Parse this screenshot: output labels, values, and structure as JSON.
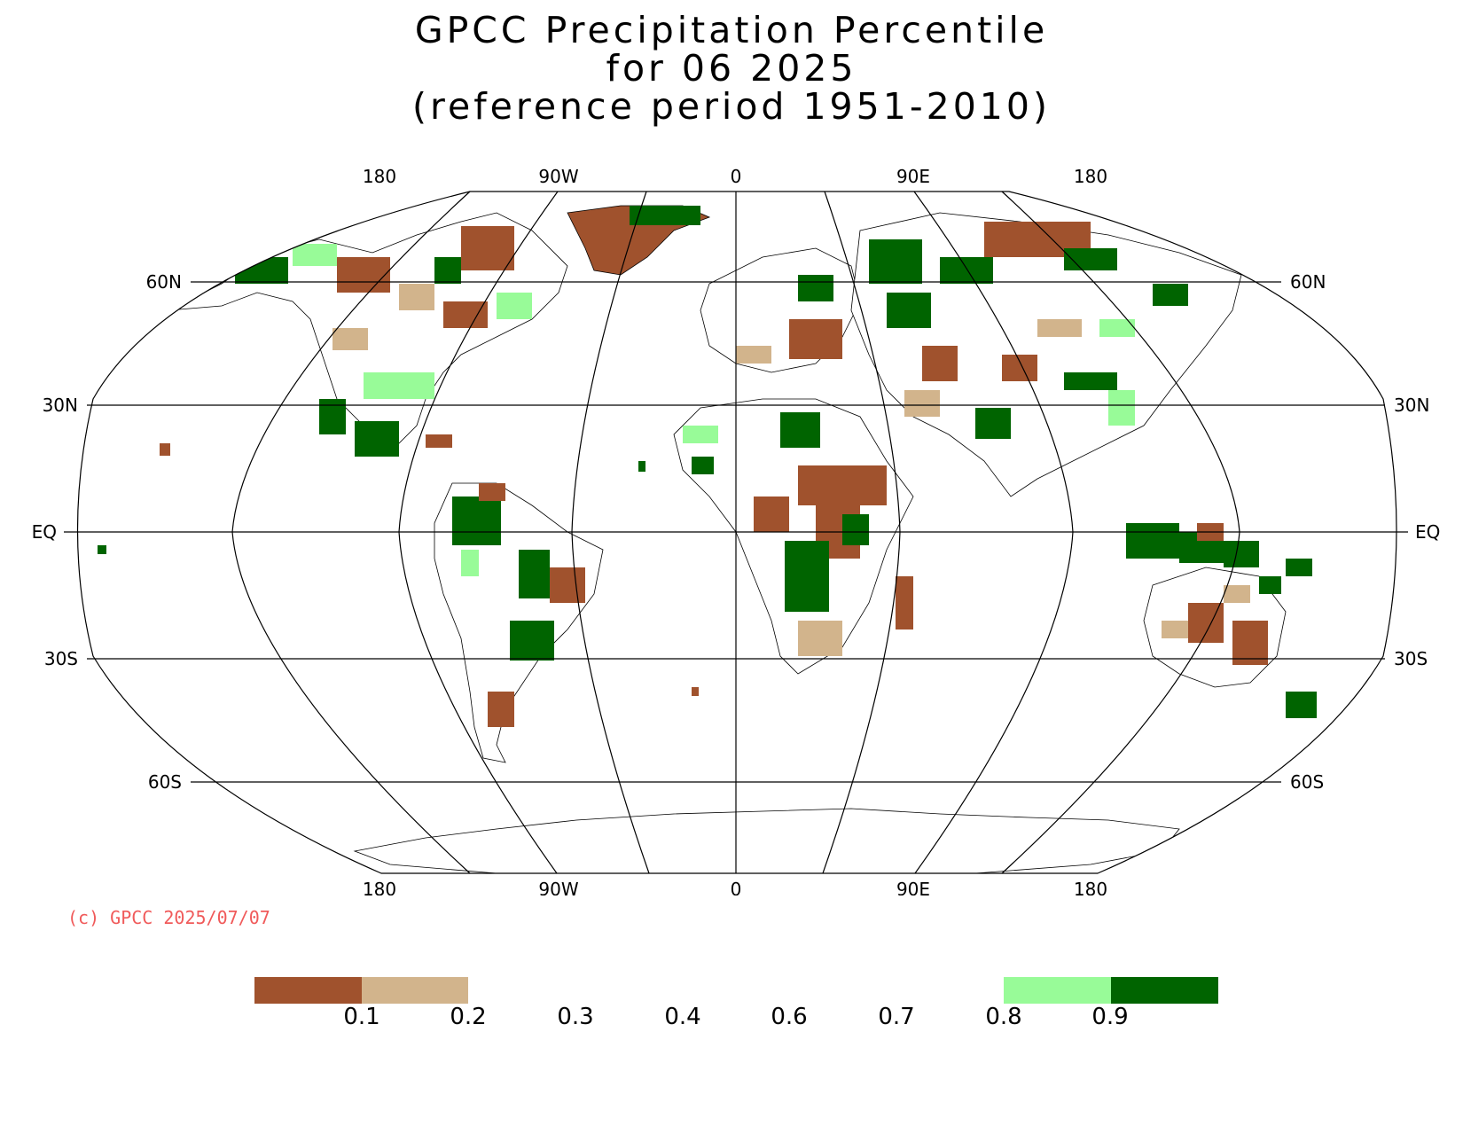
{
  "title": {
    "line1": "GPCC Precipitation Percentile",
    "line2": "for 06 2025",
    "line3": "(reference period 1951-2010)"
  },
  "map": {
    "projection": "Robinson",
    "lon_labels_top": [
      "180",
      "90W",
      "0",
      "90E",
      "180"
    ],
    "lon_labels_bottom": [
      "180",
      "90W",
      "0",
      "90E",
      "180"
    ],
    "lat_labels_left": [
      "60N",
      "30N",
      "EQ",
      "30S",
      "60S"
    ],
    "lat_labels_right": [
      "60N",
      "30N",
      "EQ",
      "30S",
      "60S"
    ]
  },
  "copyright": "(c) GPCC 2025/07/07",
  "legend": {
    "tick_labels": [
      "0.1",
      "0.2",
      "0.3",
      "0.4",
      "0.6",
      "0.7",
      "0.8",
      "0.9"
    ],
    "bins": [
      {
        "range": "<0.1",
        "color": "#a0522d"
      },
      {
        "range": "0.1-0.2",
        "color": "#d2b48c"
      },
      {
        "range": "0.8-0.9",
        "color": "#98fb98"
      },
      {
        "range": ">0.9",
        "color": "#006400"
      }
    ]
  },
  "colors": {
    "very_dry": "#a0522d",
    "dry": "#d2b48c",
    "wet": "#98fb98",
    "very_wet": "#006400",
    "copyright": "#f05a5a"
  }
}
